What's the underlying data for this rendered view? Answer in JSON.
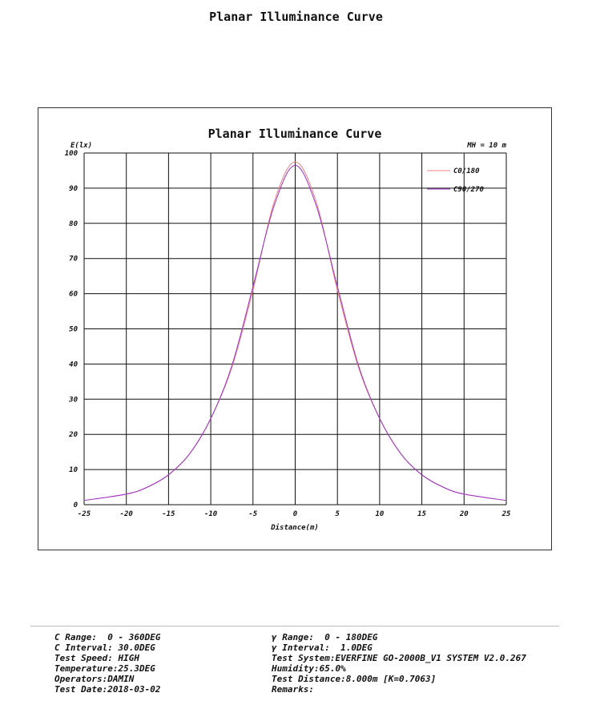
{
  "header": {
    "title": "Planar Illuminance Curve"
  },
  "chart_data": {
    "type": "line",
    "title": "Planar Illuminance Curve",
    "ylabel": "E(lx)",
    "xlabel": "Distance(m)",
    "annotation": "MH = 10 m",
    "xlim": [
      -25,
      25
    ],
    "ylim": [
      0,
      100
    ],
    "x_ticks": [
      -25,
      -20,
      -15,
      -10,
      -5,
      0,
      5,
      10,
      15,
      20,
      25
    ],
    "y_ticks": [
      0,
      10,
      20,
      30,
      40,
      50,
      60,
      70,
      80,
      90,
      100
    ],
    "grid": true,
    "legend_position": "top-right",
    "series": [
      {
        "name": "C0/180",
        "color": "#f08080",
        "x": [
          -25,
          -20,
          -17.5,
          -15,
          -12.5,
          -10,
          -7.5,
          -5,
          -2.5,
          0,
          2.5,
          5,
          7.5,
          10,
          12.5,
          15,
          17.5,
          20,
          25
        ],
        "values": [
          1.2,
          3.0,
          5.0,
          8.5,
          14.5,
          24.5,
          39.0,
          61.0,
          86.0,
          97.5,
          86.0,
          61.0,
          39.0,
          24.5,
          14.5,
          8.5,
          5.0,
          3.0,
          1.2
        ]
      },
      {
        "name": "C90/270",
        "color": "#9b30c8",
        "x": [
          -25,
          -20,
          -17.5,
          -15,
          -12.5,
          -10,
          -7.5,
          -5,
          -2.5,
          0,
          2.5,
          5,
          7.5,
          10,
          12.5,
          15,
          17.5,
          20,
          25
        ],
        "values": [
          1.2,
          3.0,
          5.0,
          8.5,
          14.5,
          24.5,
          39.5,
          62.0,
          85.0,
          96.5,
          85.0,
          62.0,
          39.5,
          24.5,
          14.5,
          8.5,
          5.0,
          3.0,
          1.2
        ]
      }
    ]
  },
  "info": {
    "left": [
      "C Range:  0 - 360DEG",
      "C Interval: 30.0DEG",
      "Test Speed: HIGH",
      "Temperature:25.3DEG",
      "Operators:DAMIN",
      "Test Date:2018-03-02"
    ],
    "right": [
      "γ Range:  0 - 180DEG",
      "γ Interval:  1.0DEG",
      "Test System:EVERFINE GO-2000B_V1 SYSTEM V2.0.267",
      "Humidity:65.0%",
      "Test Distance:8.000m [K=0.7063]",
      "Remarks:"
    ]
  }
}
